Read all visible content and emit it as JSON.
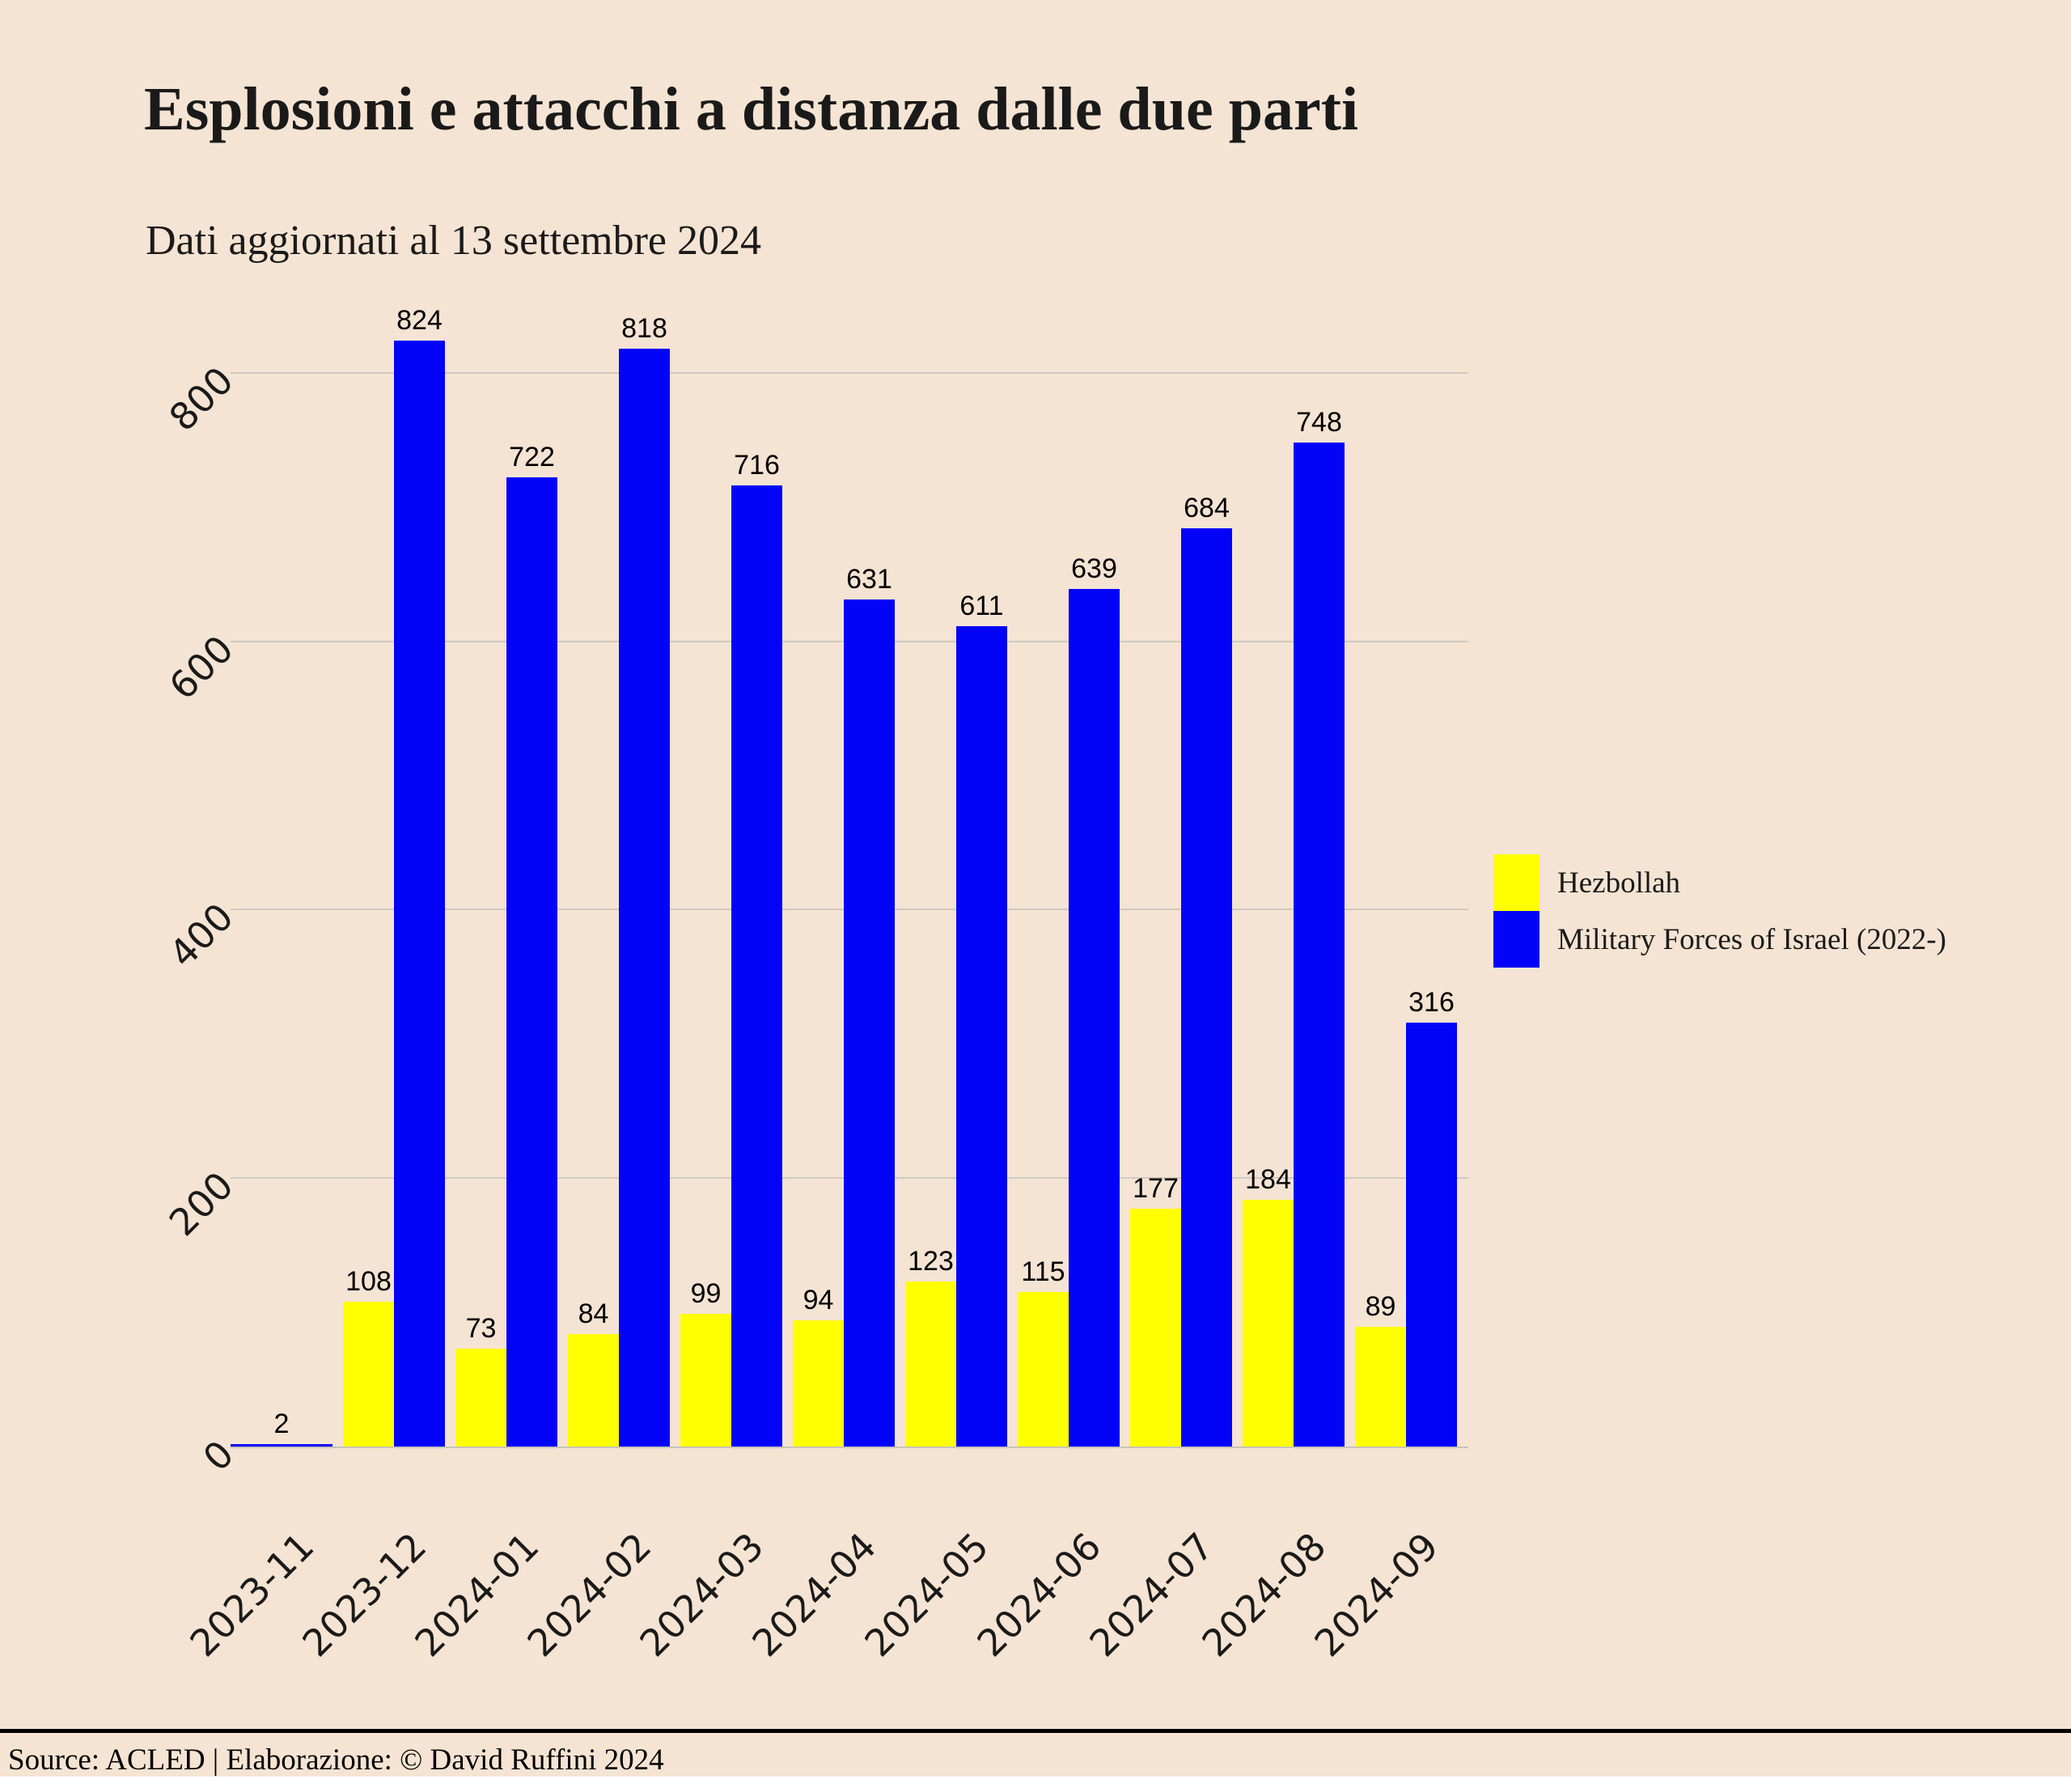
{
  "header": {
    "title": "Esplosioni e attacchi a distanza dalle due parti",
    "subtitle": "Dati aggiornati al 13 settembre 2024"
  },
  "caption": {
    "text": "Source: ACLED | Elaborazione: © David Ruffini 2024"
  },
  "colors": {
    "background": "#F5E4D3",
    "gridline": "#CFCAC2",
    "text": "#1A1A1A",
    "hezbollah_yellow": "#FFFF00",
    "israel_blue": "#0303F7"
  },
  "legend": {
    "position": "right"
  },
  "chart_data": {
    "type": "bar",
    "title": "Esplosioni e attacchi a distanza dalle due parti",
    "subtitle": "Dati aggiornati al 13 settembre 2024",
    "categories": [
      "2023-11",
      "2023-12",
      "2024-01",
      "2024-02",
      "2024-03",
      "2024-04",
      "2024-05",
      "2024-06",
      "2024-07",
      "2024-08",
      "2024-09"
    ],
    "series": [
      {
        "name": "Hezbollah",
        "color": "#FFFF00",
        "values": [
          null,
          108,
          73,
          84,
          99,
          94,
          123,
          115,
          177,
          184,
          89
        ]
      },
      {
        "name": "Military Forces of Israel (2022-)",
        "color": "#0303F7",
        "values": [
          2,
          824,
          722,
          818,
          716,
          631,
          611,
          639,
          684,
          748,
          316
        ]
      }
    ],
    "y_ticks": [
      0,
      200,
      400,
      600,
      800
    ],
    "ylim": [
      0,
      870
    ],
    "xlabel": "",
    "ylabel": "",
    "grid": "horizontal-major",
    "bar_value_labels": true,
    "legend_position": "right-middle"
  }
}
